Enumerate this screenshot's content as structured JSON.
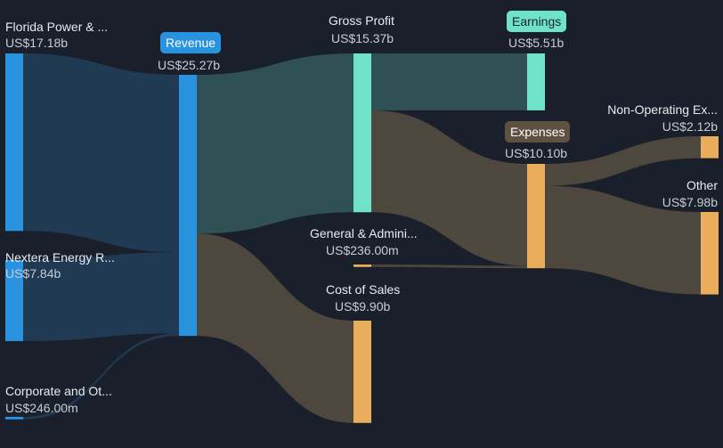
{
  "chart_data": {
    "type": "sankey",
    "title": "",
    "nodes": [
      {
        "id": "fpl",
        "name": "Florida Power & ...",
        "value_label": "US$17.18b",
        "value": 17.18
      },
      {
        "id": "ner",
        "name": "Nextera Energy R...",
        "value_label": "US$7.84b",
        "value": 7.84
      },
      {
        "id": "corp",
        "name": "Corporate and Ot...",
        "value_label": "US$246.00m",
        "value": 0.246
      },
      {
        "id": "revenue",
        "name": "Revenue",
        "value_label": "US$25.27b",
        "value": 25.27
      },
      {
        "id": "gross",
        "name": "Gross Profit",
        "value_label": "US$15.37b",
        "value": 15.37
      },
      {
        "id": "ga",
        "name": "General & Admini...",
        "value_label": "US$236.00m",
        "value": 0.236
      },
      {
        "id": "cos",
        "name": "Cost of Sales",
        "value_label": "US$9.90b",
        "value": 9.9
      },
      {
        "id": "earnings",
        "name": "Earnings",
        "value_label": "US$5.51b",
        "value": 5.51
      },
      {
        "id": "expenses",
        "name": "Expenses",
        "value_label": "US$10.10b",
        "value": 10.1
      },
      {
        "id": "nonop",
        "name": "Non-Operating Ex...",
        "value_label": "US$2.12b",
        "value": 2.12
      },
      {
        "id": "other",
        "name": "Other",
        "value_label": "US$7.98b",
        "value": 7.98
      }
    ],
    "links": [
      {
        "source": "fpl",
        "target": "revenue",
        "value": 17.18
      },
      {
        "source": "ner",
        "target": "revenue",
        "value": 7.84
      },
      {
        "source": "corp",
        "target": "revenue",
        "value": 0.246
      },
      {
        "source": "revenue",
        "target": "gross",
        "value": 15.37
      },
      {
        "source": "revenue",
        "target": "cos",
        "value": 9.9
      },
      {
        "source": "gross",
        "target": "earnings",
        "value": 5.51
      },
      {
        "source": "gross",
        "target": "expenses",
        "value": 9.86
      },
      {
        "source": "ga",
        "target": "expenses",
        "value": 0.236
      },
      {
        "source": "expenses",
        "target": "nonop",
        "value": 2.12
      },
      {
        "source": "expenses",
        "target": "other",
        "value": 7.98
      }
    ]
  },
  "colors": {
    "background": "#1a202b",
    "revenue_node": "#2a93e0",
    "profit_node": "#6ee3c8",
    "expense_node": "#e9ad5c",
    "revenue_link": "#213a54",
    "profit_link": "#2f5155",
    "expense_link": "#4e473d"
  }
}
